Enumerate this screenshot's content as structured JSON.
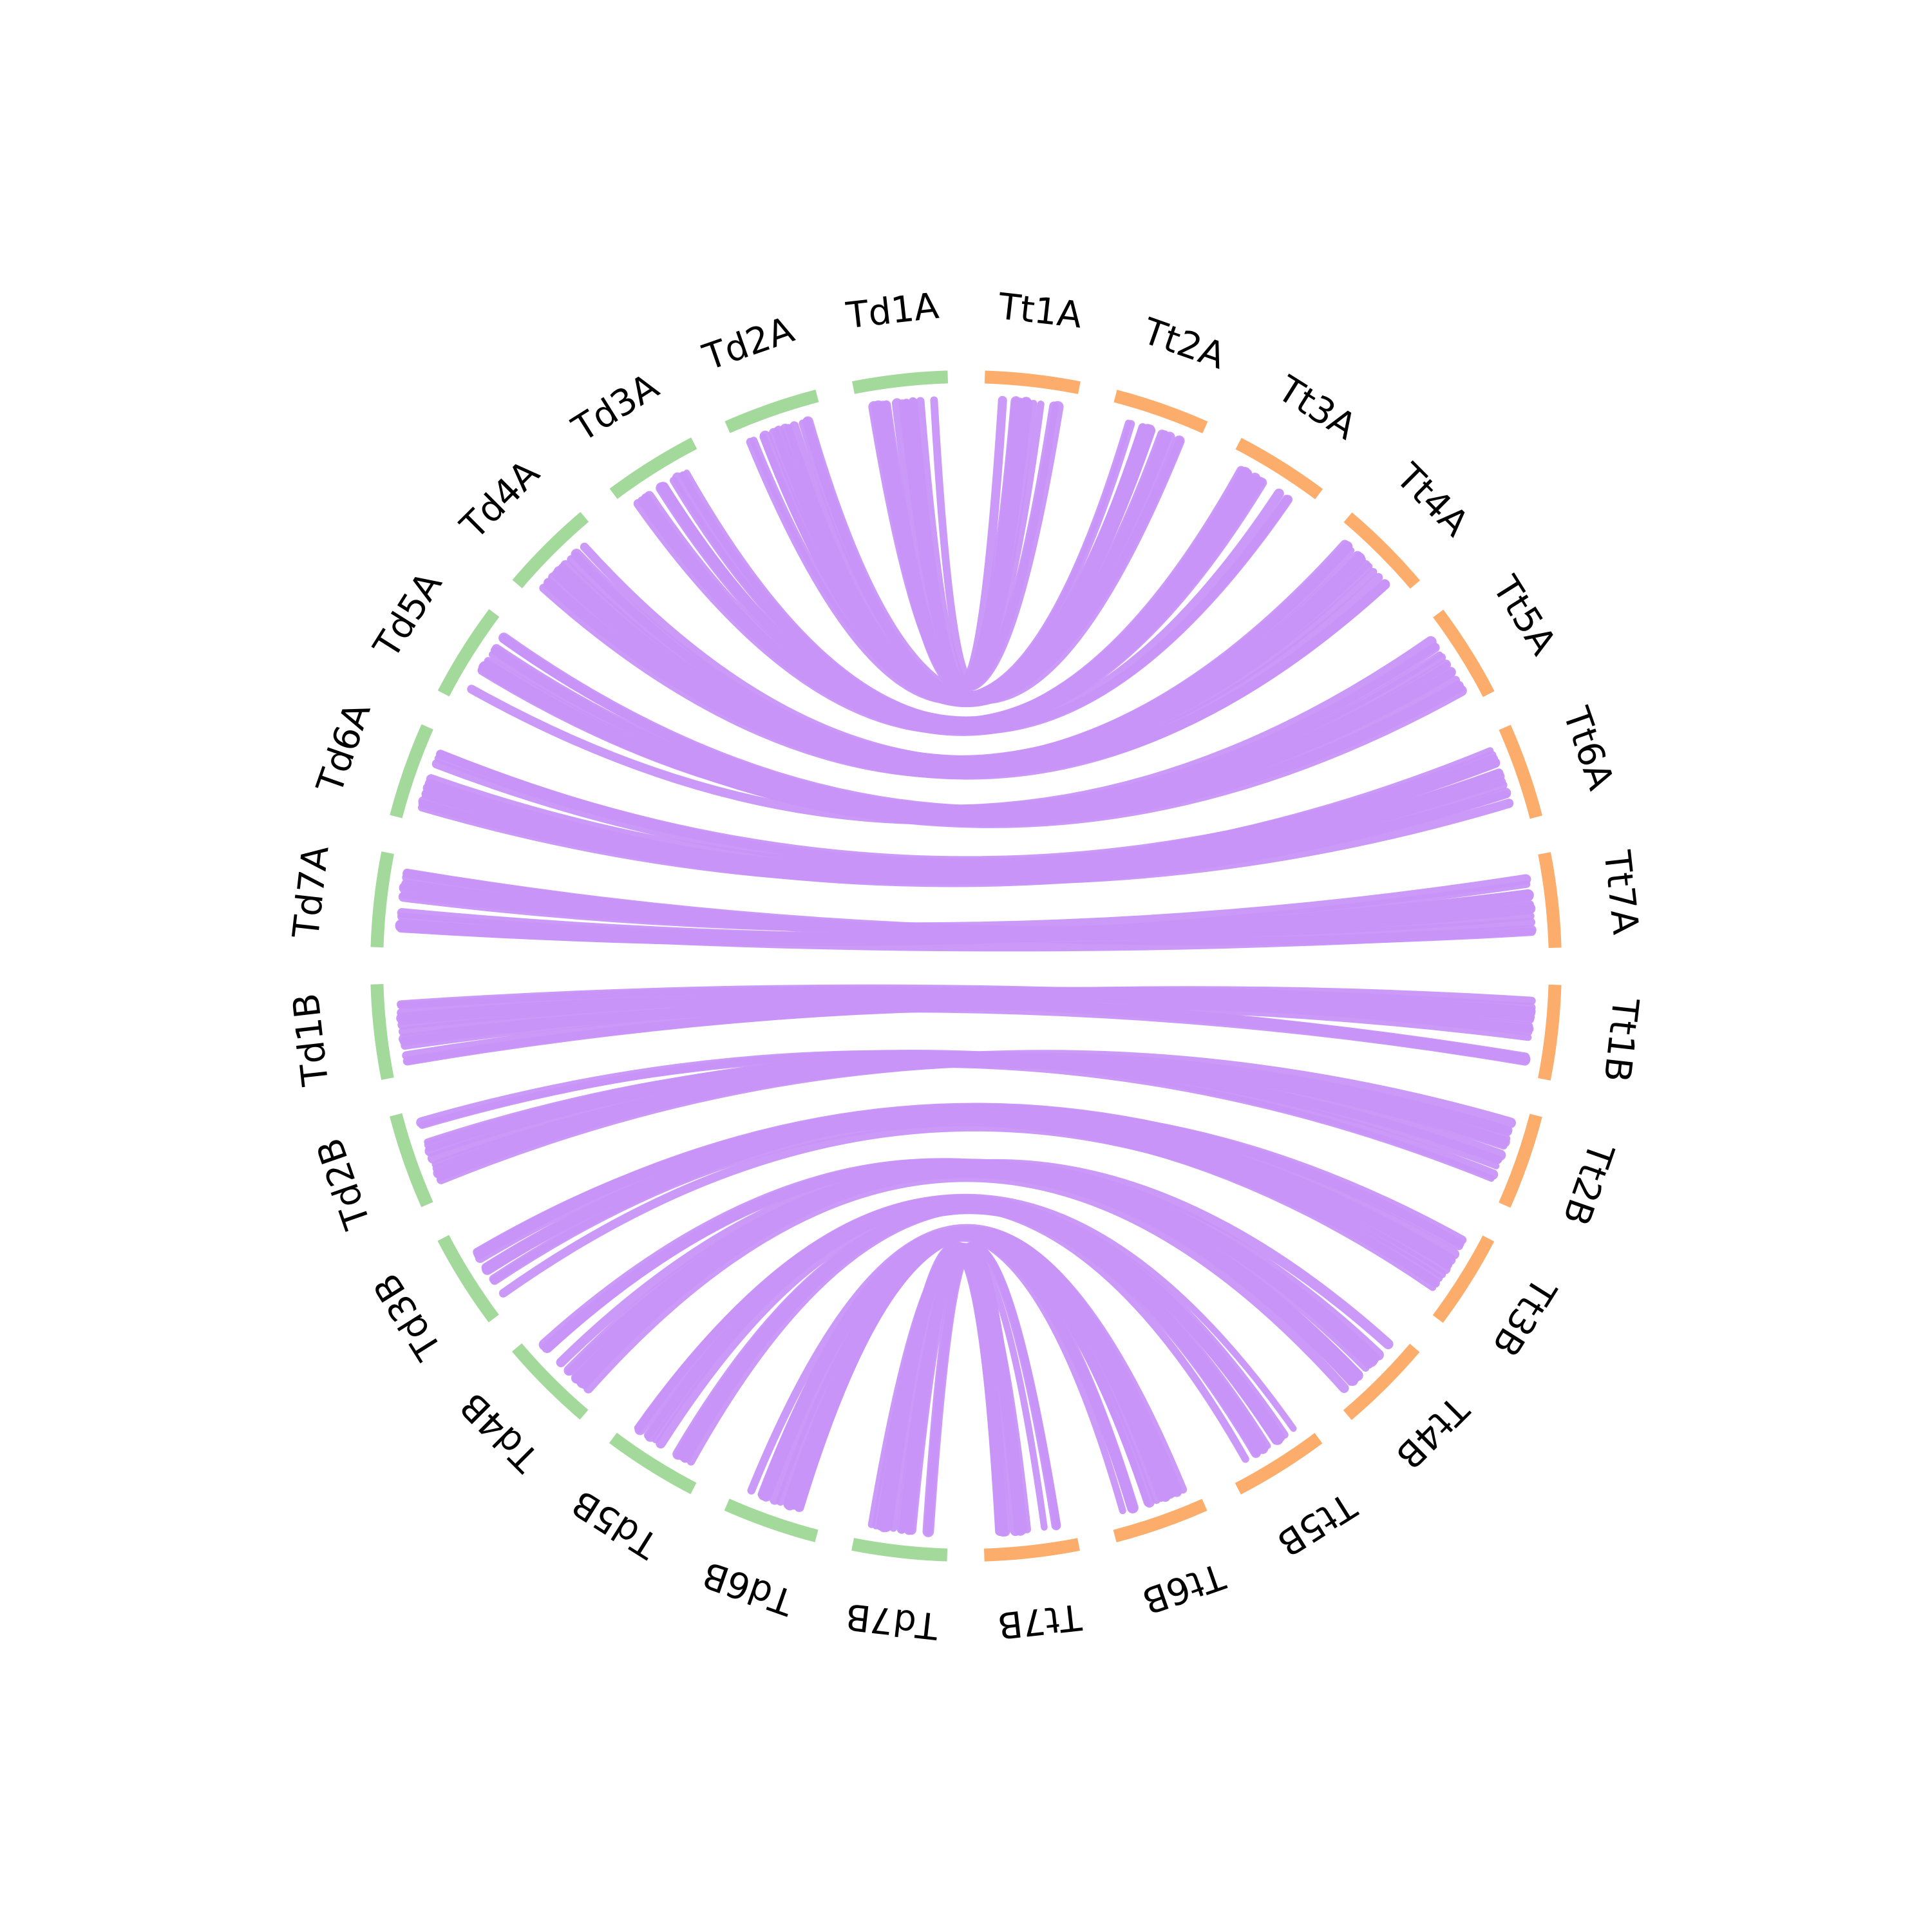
{
  "colors": {
    "td_arc": "#a3d99b",
    "tt_arc": "#fdad6b",
    "link": "#c893f8",
    "label": "#000000"
  },
  "segments": [
    {
      "id": "Td1A",
      "label": "Td1A",
      "group": "td"
    },
    {
      "id": "Td2A",
      "label": "Td2A",
      "group": "td"
    },
    {
      "id": "Td3A",
      "label": "Td3A",
      "group": "td"
    },
    {
      "id": "Td4A",
      "label": "Td4A",
      "group": "td"
    },
    {
      "id": "Td5A",
      "label": "Td5A",
      "group": "td"
    },
    {
      "id": "Td6A",
      "label": "Td6A",
      "group": "td"
    },
    {
      "id": "Td7A",
      "label": "Td7A",
      "group": "td"
    },
    {
      "id": "Td1B",
      "label": "Td1B",
      "group": "td"
    },
    {
      "id": "Td2B",
      "label": "Td2B",
      "group": "td"
    },
    {
      "id": "Td3B",
      "label": "Td3B",
      "group": "td"
    },
    {
      "id": "Td4B",
      "label": "Td4B",
      "group": "td"
    },
    {
      "id": "Td5B",
      "label": "Td5B",
      "group": "td"
    },
    {
      "id": "Td6B",
      "label": "Td6B",
      "group": "td"
    },
    {
      "id": "Td7B",
      "label": "Td7B",
      "group": "td"
    },
    {
      "id": "Tt7B",
      "label": "Tt7B",
      "group": "tt"
    },
    {
      "id": "Tt6B",
      "label": "Tt6B",
      "group": "tt"
    },
    {
      "id": "Tt5B",
      "label": "Tt5B",
      "group": "tt"
    },
    {
      "id": "Tt4B",
      "label": "Tt4B",
      "group": "tt"
    },
    {
      "id": "Tt3B",
      "label": "Tt3B",
      "group": "tt"
    },
    {
      "id": "Tt2B",
      "label": "Tt2B",
      "group": "tt"
    },
    {
      "id": "Tt1B",
      "label": "Tt1B",
      "group": "tt"
    },
    {
      "id": "Tt7A",
      "label": "Tt7A",
      "group": "tt"
    },
    {
      "id": "Tt6A",
      "label": "Tt6A",
      "group": "tt"
    },
    {
      "id": "Tt5A",
      "label": "Tt5A",
      "group": "tt"
    },
    {
      "id": "Tt4A",
      "label": "Tt4A",
      "group": "tt"
    },
    {
      "id": "Tt3A",
      "label": "Tt3A",
      "group": "tt"
    },
    {
      "id": "Tt2A",
      "label": "Tt2A",
      "group": "tt"
    },
    {
      "id": "Tt1A",
      "label": "Tt1A",
      "group": "tt"
    }
  ],
  "links": [
    {
      "source": "Td1A",
      "target": "Tt1A"
    },
    {
      "source": "Td2A",
      "target": "Tt2A"
    },
    {
      "source": "Td3A",
      "target": "Tt3A"
    },
    {
      "source": "Td4A",
      "target": "Tt4A"
    },
    {
      "source": "Td5A",
      "target": "Tt5A"
    },
    {
      "source": "Td6A",
      "target": "Tt6A"
    },
    {
      "source": "Td7A",
      "target": "Tt7A"
    },
    {
      "source": "Td1B",
      "target": "Tt1B"
    },
    {
      "source": "Td2B",
      "target": "Tt2B"
    },
    {
      "source": "Td3B",
      "target": "Tt3B"
    },
    {
      "source": "Td4B",
      "target": "Tt4B"
    },
    {
      "source": "Td5B",
      "target": "Tt5B"
    },
    {
      "source": "Td6B",
      "target": "Tt6B"
    },
    {
      "source": "Td7B",
      "target": "Tt7B"
    }
  ]
}
